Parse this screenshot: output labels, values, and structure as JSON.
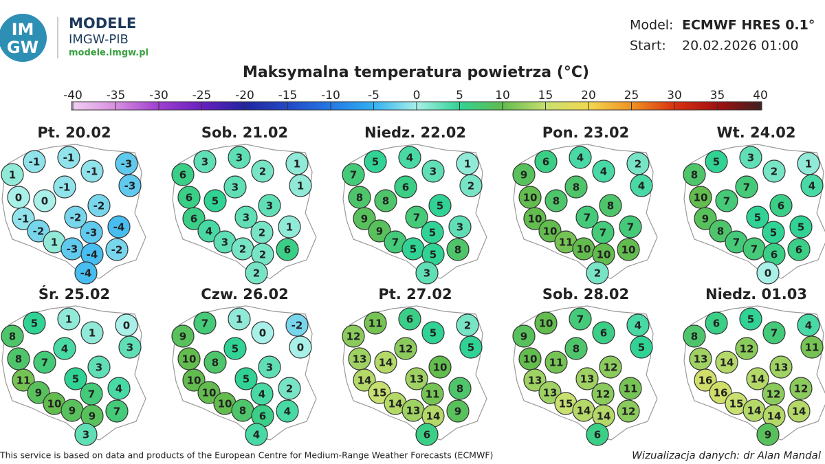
{
  "header": {
    "logo": [
      "IM",
      "GW"
    ],
    "brand": "MODELE",
    "subtitle": "IMGW-PIB",
    "url": "modele.imgw.pl",
    "model_label": "Model:",
    "model": "ECMWF HRES 0.1°",
    "start_label": "Start:",
    "start": "20.02.2026 01:00"
  },
  "title": "Maksymalna temperatura powietrza (°C)",
  "colorbar": {
    "ticks": [
      -40,
      -35,
      -30,
      -25,
      -20,
      -15,
      -10,
      -5,
      0,
      5,
      10,
      15,
      20,
      25,
      30,
      35,
      40
    ],
    "colors": [
      "#f2d0f2",
      "#d890e0",
      "#a040d0",
      "#6a20c0",
      "#2224a0",
      "#2448c4",
      "#2478e4",
      "#30b0f2",
      "#a8f0e8",
      "#30d394",
      "#62bc4e",
      "#c8e070",
      "#f2d850",
      "#f09020",
      "#d83010",
      "#a01010",
      "#402020"
    ]
  },
  "panels": [
    {
      "day": "Pt. 20.02",
      "values": [
        -1,
        -1,
        -1,
        -3,
        1,
        -3,
        -1,
        0,
        0,
        -2,
        -1,
        -2,
        -4,
        -2,
        -3,
        1,
        -3,
        -2,
        -4,
        -4
      ]
    },
    {
      "day": "Sob. 21.02",
      "values": [
        3,
        3,
        2,
        1,
        6,
        1,
        3,
        6,
        5,
        3,
        6,
        3,
        1,
        4,
        2,
        3,
        2,
        6,
        2,
        2
      ]
    },
    {
      "day": "Niedz. 22.02",
      "values": [
        5,
        4,
        3,
        1,
        7,
        2,
        6,
        8,
        8,
        5,
        9,
        7,
        3,
        9,
        5,
        7,
        5,
        8,
        5,
        3
      ]
    },
    {
      "day": "Pon. 23.02",
      "values": [
        6,
        4,
        4,
        2,
        9,
        4,
        8,
        10,
        8,
        8,
        10,
        7,
        7,
        10,
        7,
        11,
        10,
        10,
        10,
        2
      ]
    },
    {
      "day": "Wt. 24.02",
      "values": [
        5,
        3,
        2,
        1,
        8,
        4,
        7,
        10,
        7,
        6,
        9,
        5,
        5,
        8,
        5,
        7,
        7,
        6,
        6,
        0
      ]
    },
    {
      "day": "Śr. 25.02",
      "values": [
        5,
        1,
        1,
        0,
        8,
        3,
        4,
        8,
        7,
        3,
        11,
        5,
        4,
        9,
        7,
        10,
        9,
        7,
        9,
        3
      ]
    },
    {
      "day": "Czw. 26.02",
      "values": [
        7,
        1,
        0,
        -2,
        9,
        0,
        5,
        10,
        8,
        3,
        10,
        5,
        2,
        10,
        4,
        10,
        8,
        4,
        6,
        4
      ]
    },
    {
      "day": "Pt. 27.02",
      "values": [
        11,
        6,
        5,
        2,
        12,
        5,
        12,
        13,
        14,
        10,
        14,
        13,
        8,
        15,
        11,
        14,
        13,
        9,
        14,
        6
      ]
    },
    {
      "day": "Sob. 28.02",
      "values": [
        10,
        7,
        6,
        4,
        9,
        5,
        8,
        10,
        11,
        12,
        13,
        13,
        11,
        13,
        12,
        15,
        14,
        12,
        14,
        6
      ]
    },
    {
      "day": "Niedz. 01.03",
      "values": [
        6,
        5,
        7,
        4,
        8,
        11,
        12,
        13,
        14,
        13,
        16,
        14,
        12,
        16,
        12,
        15,
        14,
        14,
        14,
        9
      ]
    }
  ],
  "footer": {
    "source": "This service is based on data and products of the European Centre for Medium-Range Weather Forecasts (ECMWF)",
    "credit": "Wizualizacja danych: dr Alan Mandal"
  }
}
